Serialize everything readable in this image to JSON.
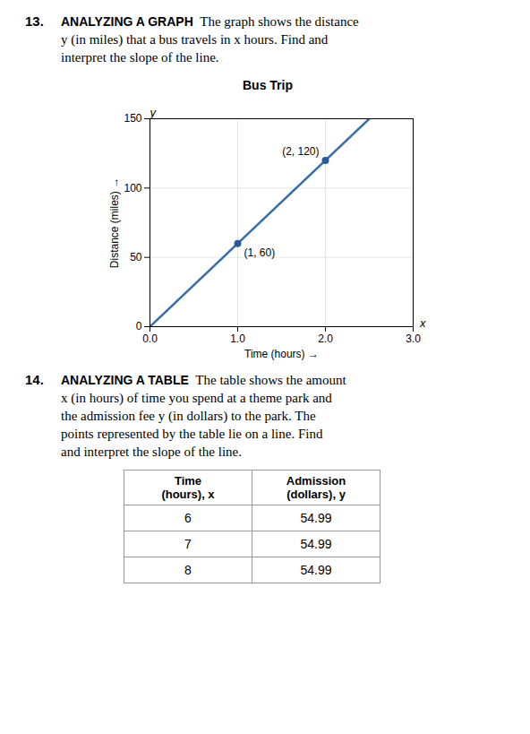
{
  "chart_data": {
    "type": "line",
    "title": "Bus Trip",
    "xlabel": "Time (hours)",
    "ylabel": "Distance (miles)",
    "xlim": [
      0,
      3
    ],
    "ylim": [
      0,
      150
    ],
    "xticks": [
      0,
      1,
      2,
      3
    ],
    "yticks": [
      0,
      50,
      100,
      150
    ],
    "grid": true,
    "axis_names": {
      "x": "x",
      "y": "y"
    },
    "series": [
      {
        "type": "line",
        "x": [
          0,
          2.5
        ],
        "values": [
          0,
          150
        ],
        "color": "#3a6ea8"
      },
      {
        "type": "scatter",
        "x": [
          1,
          2
        ],
        "values": [
          60,
          120
        ],
        "color": "#2a5a98",
        "marker": "circle",
        "data_labels": true,
        "value_labels": [
          "(1, 60)",
          "(2, 120)"
        ]
      }
    ]
  },
  "items": [
    {
      "number": "13.",
      "heading": "ANALYZING A GRAPH",
      "lines": [
        "The graph shows the distance",
        "y (in miles) that a bus travels in x hours. Find and",
        "interpret the slope of the line."
      ]
    },
    {
      "number": "14.",
      "heading": "ANALYZING A TABLE",
      "lines": [
        "The table shows the amount",
        "x (in hours) of time you spend at a theme park and",
        "the admission fee y (in dollars) to the park. The",
        "points represented by the table lie on a line. Find",
        "and interpret the slope of the line."
      ]
    }
  ],
  "table": {
    "headers": [
      "Time\n(hours), x",
      "Admission\n(dollars), y"
    ],
    "rows": [
      [
        6,
        54.99
      ],
      [
        7,
        54.99
      ],
      [
        8,
        54.99
      ]
    ]
  }
}
